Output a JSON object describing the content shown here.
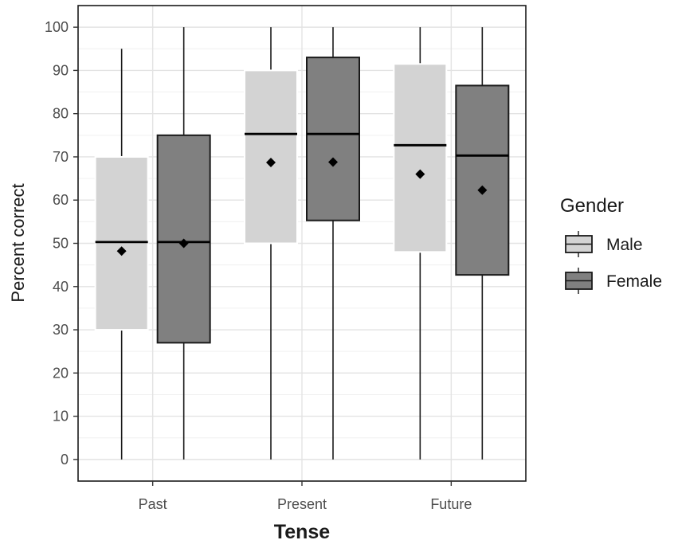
{
  "chart_data": {
    "type": "box",
    "xlabel": "Tense",
    "ylabel": "Percent correct",
    "categories": [
      "Past",
      "Present",
      "Future"
    ],
    "ylim": [
      -5,
      105
    ],
    "yticks": [
      0,
      10,
      20,
      30,
      40,
      50,
      60,
      70,
      80,
      90,
      100
    ],
    "grid": true,
    "legend": {
      "title": "Gender",
      "position": "right"
    },
    "series": [
      {
        "name": "Male",
        "fill": "#d3d3d3",
        "outline": "#ffffff",
        "boxes": [
          {
            "category": "Past",
            "min": 0,
            "q1": 30,
            "median": 50.3,
            "q3": 70,
            "max": 95,
            "mean": 48.2
          },
          {
            "category": "Present",
            "min": 0,
            "q1": 50,
            "median": 75.3,
            "q3": 90,
            "max": 100,
            "mean": 68.7
          },
          {
            "category": "Future",
            "min": 0,
            "q1": 48,
            "median": 72.7,
            "q3": 91.5,
            "max": 100,
            "mean": 66
          }
        ]
      },
      {
        "name": "Female",
        "fill": "#808080",
        "outline": "#1a1a1a",
        "boxes": [
          {
            "category": "Past",
            "min": 0,
            "q1": 27,
            "median": 50.3,
            "q3": 75,
            "max": 100,
            "mean": 50
          },
          {
            "category": "Present",
            "min": 0,
            "q1": 55.3,
            "median": 75.3,
            "q3": 93,
            "max": 100,
            "mean": 68.8
          },
          {
            "category": "Future",
            "min": 0,
            "q1": 42.7,
            "median": 70.3,
            "q3": 86.5,
            "max": 100,
            "mean": 62.3
          }
        ]
      }
    ]
  }
}
